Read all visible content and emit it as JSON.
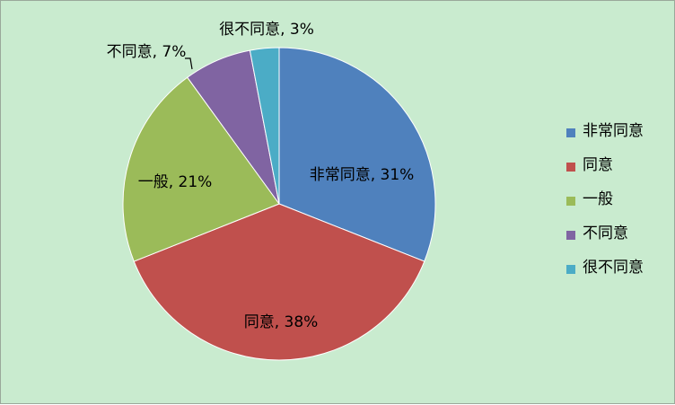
{
  "chart_data": {
    "type": "pie",
    "title": "",
    "categories": [
      "非常同意",
      "同意",
      "一般",
      "不同意",
      "很不同意"
    ],
    "values": [
      31,
      38,
      21,
      7,
      3
    ],
    "unit": "%",
    "data_labels": [
      "非常同意, 31%",
      "同意, 38%",
      "一般, 21%",
      "不同意, 7%",
      "很不同意, 3%"
    ],
    "colors": [
      "#4f81bd",
      "#c0504d",
      "#9bbb59",
      "#8064a2",
      "#4bacc6"
    ],
    "legend_position": "right",
    "start_angle": "top, clockwise"
  },
  "background_color": "#c9ebcf"
}
